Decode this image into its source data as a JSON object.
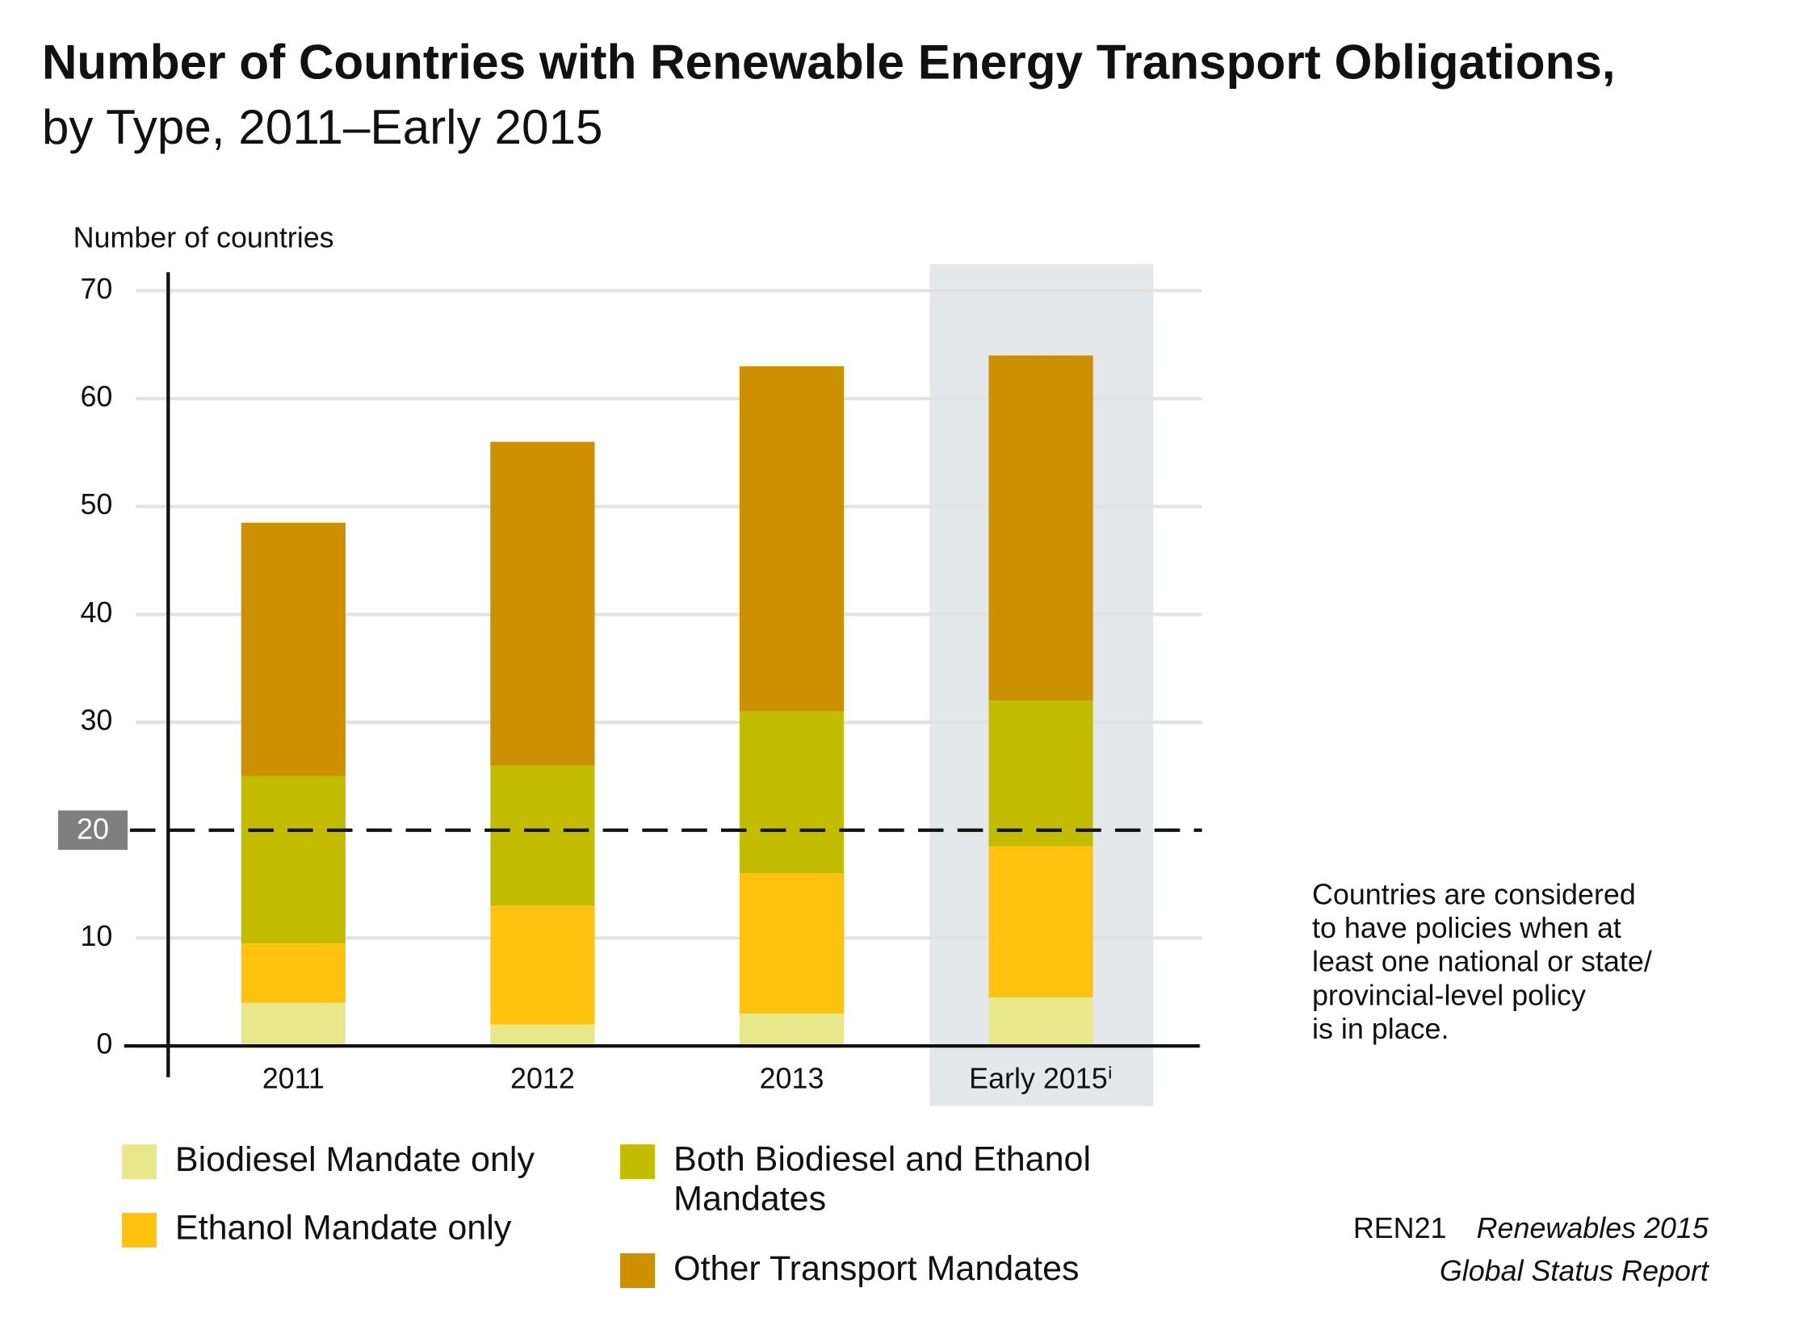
{
  "chart_data": {
    "type": "stacked_bar",
    "title": "Number of Countries with Renewable Energy Transport Obligations,",
    "subtitle": "by Type, 2011–Early 2015",
    "y_label": "Number of countries",
    "categories": [
      "2011",
      "2012",
      "2013",
      "Early 2015ⁱ"
    ],
    "highlight_category": 3,
    "series": [
      {
        "name": "Biodiesel Mandate only",
        "color": "#e8e88a",
        "values": [
          4,
          2,
          3,
          4.5
        ]
      },
      {
        "name": "Ethanol Mandate only",
        "color": "#ffc20e",
        "values": [
          5.5,
          11,
          13,
          14
        ]
      },
      {
        "name": "Both Biodiesel and Ethanol Mandates",
        "color": "#c4bc00",
        "values": [
          15.5,
          13,
          15,
          13.5
        ]
      },
      {
        "name": "Other Transport Mandates",
        "color": "#cc9000",
        "values": [
          23.5,
          30,
          32,
          32
        ]
      }
    ],
    "ylim": [
      0,
      70
    ],
    "yticks": [
      0,
      10,
      30,
      40,
      50,
      60,
      70
    ],
    "reference_line": 20,
    "grid": true,
    "note": [
      "Countries are considered",
      "to have policies when at",
      "least one national or state/",
      "provincial-level policy",
      "is in place."
    ],
    "source": {
      "org": "REN21",
      "title": "Renewables 2015",
      "subtitle": "Global Status Report"
    }
  }
}
